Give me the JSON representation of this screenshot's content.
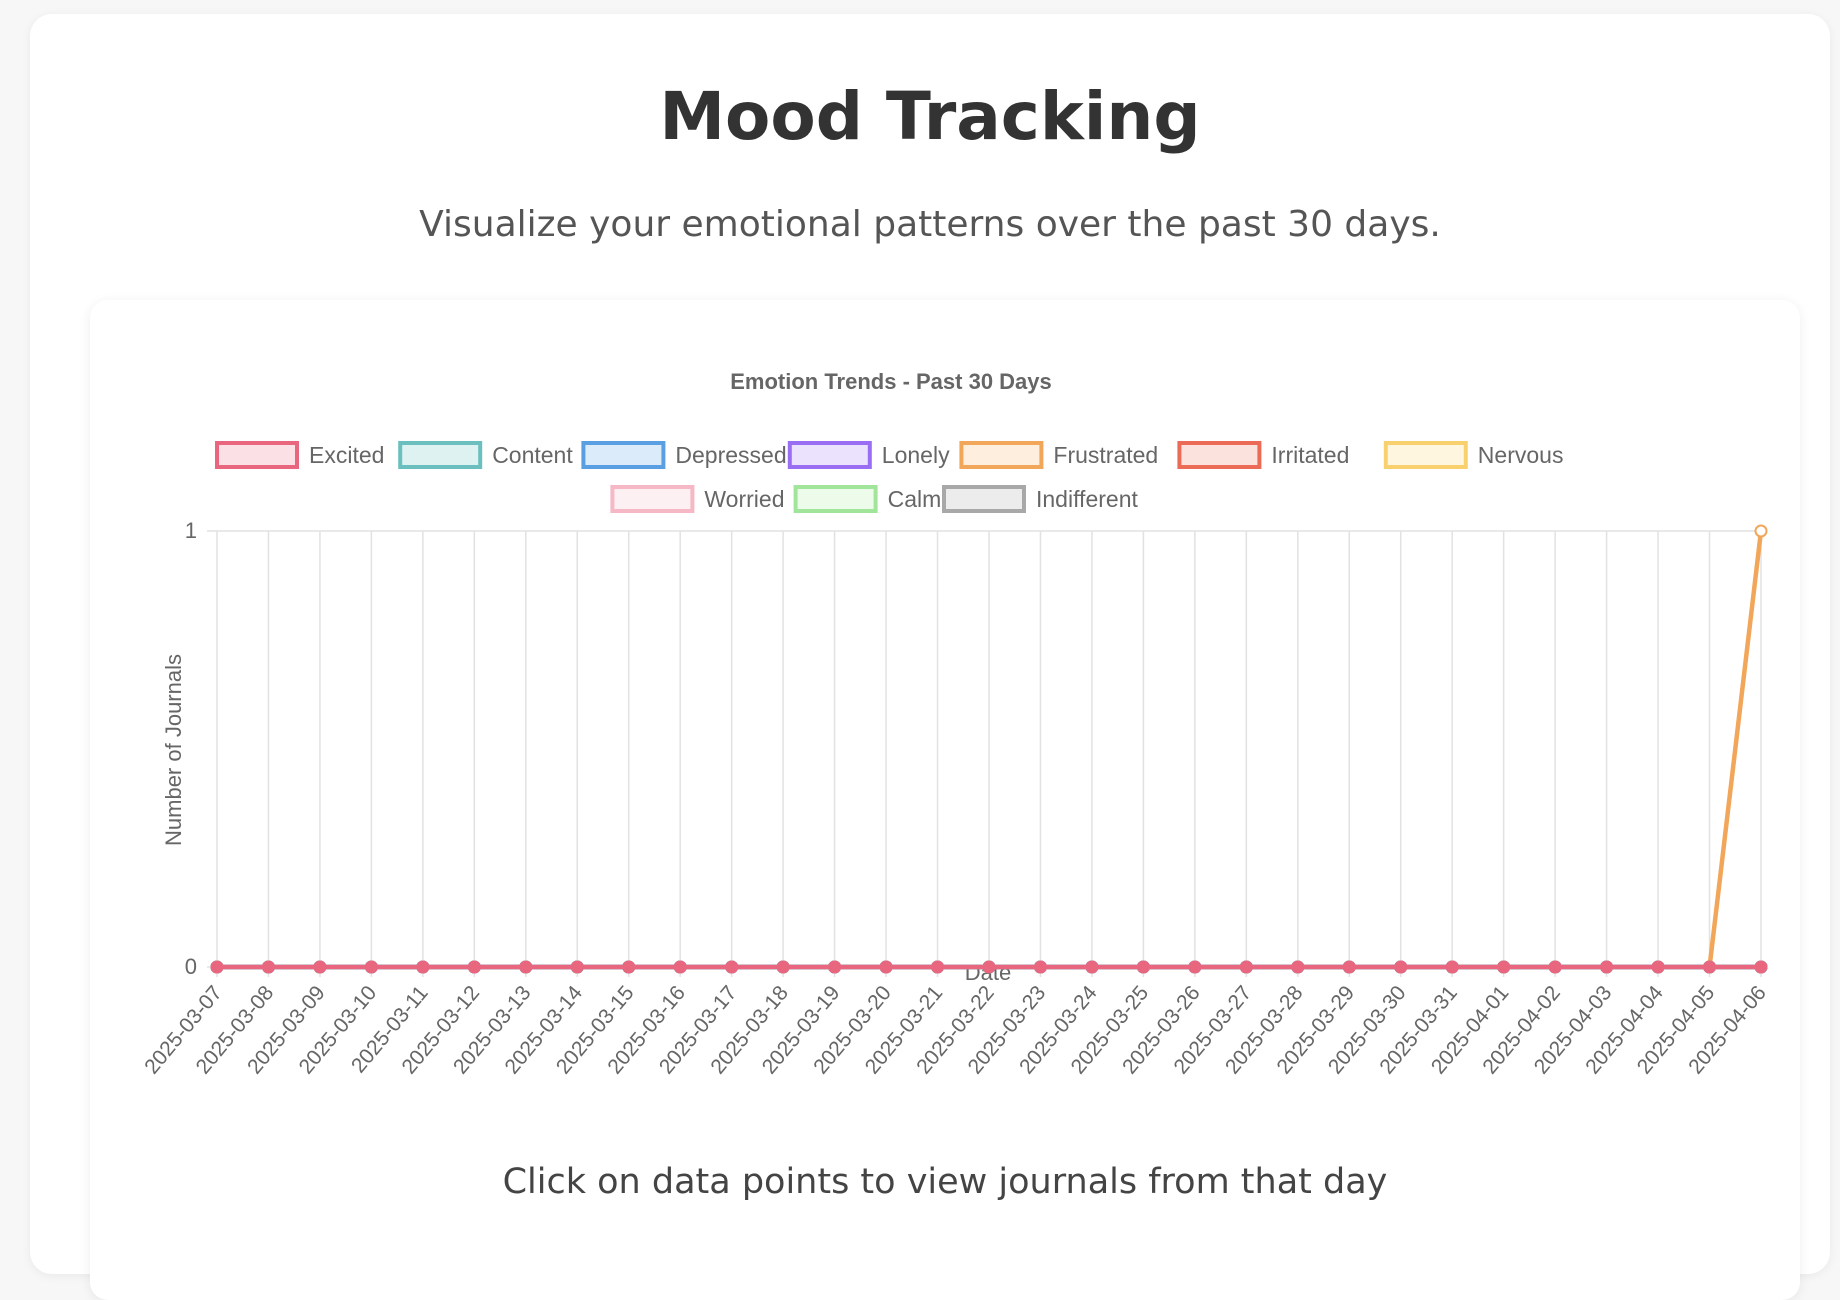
{
  "page": {
    "title": "Mood Tracking",
    "subtitle": "Visualize your emotional patterns over the past 30 days.",
    "hint": "Click on data points to view journals from that day"
  },
  "chart_data": {
    "type": "line",
    "title": "Emotion Trends - Past 30 Days",
    "xlabel": "Date",
    "ylabel": "Number of Journals",
    "ylim": [
      0,
      1
    ],
    "yticks": [
      0,
      1
    ],
    "grid": true,
    "legend_position": "top",
    "categories": [
      "2025-03-07",
      "2025-03-08",
      "2025-03-09",
      "2025-03-10",
      "2025-03-11",
      "2025-03-12",
      "2025-03-13",
      "2025-03-14",
      "2025-03-15",
      "2025-03-16",
      "2025-03-17",
      "2025-03-18",
      "2025-03-19",
      "2025-03-20",
      "2025-03-21",
      "2025-03-22",
      "2025-03-23",
      "2025-03-24",
      "2025-03-25",
      "2025-03-26",
      "2025-03-27",
      "2025-03-28",
      "2025-03-29",
      "2025-03-30",
      "2025-03-31",
      "2025-04-01",
      "2025-04-02",
      "2025-04-03",
      "2025-04-04",
      "2025-04-05",
      "2025-04-06"
    ],
    "series": [
      {
        "name": "Excited",
        "color": "#e8677f",
        "fill": "#fbe0e6",
        "values": [
          0,
          0,
          0,
          0,
          0,
          0,
          0,
          0,
          0,
          0,
          0,
          0,
          0,
          0,
          0,
          0,
          0,
          0,
          0,
          0,
          0,
          0,
          0,
          0,
          0,
          0,
          0,
          0,
          0,
          0,
          0
        ]
      },
      {
        "name": "Content",
        "color": "#6cbfbf",
        "fill": "#dff2f2",
        "values": [
          0,
          0,
          0,
          0,
          0,
          0,
          0,
          0,
          0,
          0,
          0,
          0,
          0,
          0,
          0,
          0,
          0,
          0,
          0,
          0,
          0,
          0,
          0,
          0,
          0,
          0,
          0,
          0,
          0,
          0,
          0
        ]
      },
      {
        "name": "Depressed",
        "color": "#5a9fe2",
        "fill": "#dcebfa",
        "values": [
          0,
          0,
          0,
          0,
          0,
          0,
          0,
          0,
          0,
          0,
          0,
          0,
          0,
          0,
          0,
          0,
          0,
          0,
          0,
          0,
          0,
          0,
          0,
          0,
          0,
          0,
          0,
          0,
          0,
          0,
          0
        ]
      },
      {
        "name": "Lonely",
        "color": "#9a6ef2",
        "fill": "#ebe2fd",
        "values": [
          0,
          0,
          0,
          0,
          0,
          0,
          0,
          0,
          0,
          0,
          0,
          0,
          0,
          0,
          0,
          0,
          0,
          0,
          0,
          0,
          0,
          0,
          0,
          0,
          0,
          0,
          0,
          0,
          0,
          0,
          0
        ]
      },
      {
        "name": "Frustrated",
        "color": "#f2a65a",
        "fill": "#fdeedd",
        "values": [
          0,
          0,
          0,
          0,
          0,
          0,
          0,
          0,
          0,
          0,
          0,
          0,
          0,
          0,
          0,
          0,
          0,
          0,
          0,
          0,
          0,
          0,
          0,
          0,
          0,
          0,
          0,
          0,
          0,
          0,
          1
        ]
      },
      {
        "name": "Irritated",
        "color": "#ec6b56",
        "fill": "#fce2dd",
        "values": [
          0,
          0,
          0,
          0,
          0,
          0,
          0,
          0,
          0,
          0,
          0,
          0,
          0,
          0,
          0,
          0,
          0,
          0,
          0,
          0,
          0,
          0,
          0,
          0,
          0,
          0,
          0,
          0,
          0,
          0,
          0
        ]
      },
      {
        "name": "Nervous",
        "color": "#f9d06e",
        "fill": "#fef6de",
        "values": [
          0,
          0,
          0,
          0,
          0,
          0,
          0,
          0,
          0,
          0,
          0,
          0,
          0,
          0,
          0,
          0,
          0,
          0,
          0,
          0,
          0,
          0,
          0,
          0,
          0,
          0,
          0,
          0,
          0,
          0,
          0
        ]
      },
      {
        "name": "Worried",
        "color": "#f5b8c4",
        "fill": "#fdf0f3",
        "values": [
          0,
          0,
          0,
          0,
          0,
          0,
          0,
          0,
          0,
          0,
          0,
          0,
          0,
          0,
          0,
          0,
          0,
          0,
          0,
          0,
          0,
          0,
          0,
          0,
          0,
          0,
          0,
          0,
          0,
          0,
          0
        ]
      },
      {
        "name": "Calm",
        "color": "#a0e59a",
        "fill": "#edfbeb",
        "values": [
          0,
          0,
          0,
          0,
          0,
          0,
          0,
          0,
          0,
          0,
          0,
          0,
          0,
          0,
          0,
          0,
          0,
          0,
          0,
          0,
          0,
          0,
          0,
          0,
          0,
          0,
          0,
          0,
          0,
          0,
          0
        ]
      },
      {
        "name": "Indifferent",
        "color": "#a8a8a8",
        "fill": "#ececec",
        "values": [
          0,
          0,
          0,
          0,
          0,
          0,
          0,
          0,
          0,
          0,
          0,
          0,
          0,
          0,
          0,
          0,
          0,
          0,
          0,
          0,
          0,
          0,
          0,
          0,
          0,
          0,
          0,
          0,
          0,
          0,
          0
        ]
      }
    ]
  }
}
